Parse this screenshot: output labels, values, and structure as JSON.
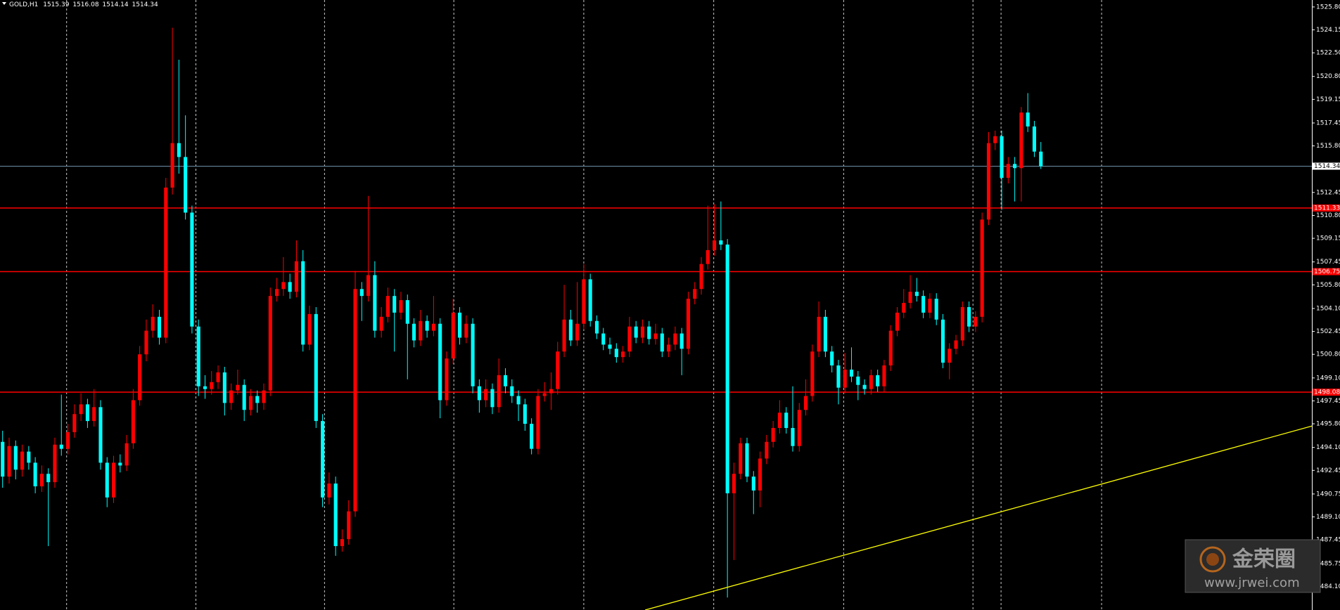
{
  "chart_data": {
    "type": "candlestick",
    "title": "GOLD,H1",
    "up_color": "#ff0000",
    "down_color": "#00ffff",
    "grid_color": "#c8c8c8",
    "axis_color": "#ffffff",
    "price_line_color": "#6f8fa8",
    "xlim": [
      -0.4,
      200.5
    ],
    "ylim": [
      1482.4,
      1526.3
    ],
    "xticks": [
      9.8,
      29.6,
      49.3,
      69.1,
      89.0,
      108.9,
      128.8,
      148.6,
      152.9,
      168.3
    ],
    "yticks": [
      {
        "value": 1525.8,
        "label": "1525.80"
      },
      {
        "value": 1524.15,
        "label": "1524.15"
      },
      {
        "value": 1522.5,
        "label": "1522.50"
      },
      {
        "value": 1520.8,
        "label": "1520.80"
      },
      {
        "value": 1519.15,
        "label": "1519.15"
      },
      {
        "value": 1517.45,
        "label": "1517.45"
      },
      {
        "value": 1515.8,
        "label": "1515.80"
      },
      {
        "value": 1512.45,
        "label": "1512.45"
      },
      {
        "value": 1510.8,
        "label": "1510.80"
      },
      {
        "value": 1509.15,
        "label": "1509.15"
      },
      {
        "value": 1507.45,
        "label": "1507.45"
      },
      {
        "value": 1505.8,
        "label": "1505.80"
      },
      {
        "value": 1504.1,
        "label": "1504.10"
      },
      {
        "value": 1502.45,
        "label": "1502.45"
      },
      {
        "value": 1500.8,
        "label": "1500.80"
      },
      {
        "value": 1499.1,
        "label": "1499.10"
      },
      {
        "value": 1497.45,
        "label": "1497.45"
      },
      {
        "value": 1495.8,
        "label": "1495.80"
      },
      {
        "value": 1494.1,
        "label": "1494.10"
      },
      {
        "value": 1492.45,
        "label": "1492.45"
      },
      {
        "value": 1490.75,
        "label": "1490.75"
      },
      {
        "value": 1489.1,
        "label": "1489.10"
      },
      {
        "value": 1487.45,
        "label": "1487.45"
      },
      {
        "value": 1485.75,
        "label": "1485.75"
      },
      {
        "value": 1484.1,
        "label": "1484.10"
      }
    ],
    "hlines": [
      1511.33,
      1506.75,
      1498.08
    ],
    "hline_color": "#ff0000",
    "trendline": {
      "x": [
        98.4,
        200.5
      ],
      "y": [
        1482.4,
        1495.64
      ],
      "color": "#ffff00"
    },
    "candles": [
      [
        1494.5,
        1495.3,
        1491.2,
        1492.0
      ],
      [
        1492.0,
        1494.8,
        1491.5,
        1494.2
      ],
      [
        1494.2,
        1494.6,
        1491.8,
        1492.5
      ],
      [
        1492.5,
        1494.3,
        1492.0,
        1493.8
      ],
      [
        1493.8,
        1494.2,
        1492.5,
        1493.0
      ],
      [
        1493.0,
        1493.4,
        1490.8,
        1491.3
      ],
      [
        1491.3,
        1492.8,
        1490.9,
        1492.2
      ],
      [
        1492.2,
        1492.6,
        1487.0,
        1491.6
      ],
      [
        1491.6,
        1494.8,
        1491.2,
        1494.3
      ],
      [
        1494.3,
        1497.9,
        1493.5,
        1494.0
      ],
      [
        1494.0,
        1495.8,
        1493.6,
        1495.2
      ],
      [
        1495.2,
        1497.2,
        1494.8,
        1496.5
      ],
      [
        1496.5,
        1498.0,
        1496.0,
        1497.2
      ],
      [
        1497.2,
        1497.6,
        1495.5,
        1496.0
      ],
      [
        1496.0,
        1498.3,
        1495.6,
        1497.0
      ],
      [
        1497.0,
        1497.5,
        1492.5,
        1493.0
      ],
      [
        1493.0,
        1493.4,
        1489.8,
        1490.5
      ],
      [
        1490.5,
        1493.5,
        1490.1,
        1493.0
      ],
      [
        1493.0,
        1493.6,
        1492.3,
        1492.8
      ],
      [
        1492.8,
        1495.0,
        1492.4,
        1494.4
      ],
      [
        1494.4,
        1498.3,
        1494.0,
        1497.5
      ],
      [
        1497.5,
        1501.4,
        1497.1,
        1500.8
      ],
      [
        1500.8,
        1503.3,
        1500.3,
        1502.5
      ],
      [
        1502.5,
        1504.4,
        1502.0,
        1503.5
      ],
      [
        1503.5,
        1504.0,
        1501.5,
        1502.0
      ],
      [
        1502.0,
        1513.5,
        1501.6,
        1512.8
      ],
      [
        1512.8,
        1524.3,
        1512.3,
        1516.0
      ],
      [
        1516.0,
        1522.0,
        1513.8,
        1515.0
      ],
      [
        1515.0,
        1518.0,
        1510.5,
        1511.0
      ],
      [
        1511.0,
        1511.5,
        1502.3,
        1502.8
      ],
      [
        1502.8,
        1503.3,
        1497.8,
        1498.5
      ],
      [
        1498.5,
        1499.3,
        1497.6,
        1498.3
      ],
      [
        1498.3,
        1499.6,
        1497.9,
        1498.8
      ],
      [
        1498.8,
        1500.0,
        1498.3,
        1499.5
      ],
      [
        1499.5,
        1499.9,
        1496.4,
        1497.3
      ],
      [
        1497.3,
        1498.7,
        1496.8,
        1498.2
      ],
      [
        1498.2,
        1499.7,
        1497.9,
        1498.6
      ],
      [
        1498.6,
        1499.0,
        1496.0,
        1496.8
      ],
      [
        1496.8,
        1498.3,
        1496.4,
        1497.8
      ],
      [
        1497.8,
        1498.2,
        1496.6,
        1497.3
      ],
      [
        1497.3,
        1498.7,
        1496.8,
        1498.2
      ],
      [
        1498.2,
        1505.6,
        1497.8,
        1505.0
      ],
      [
        1505.0,
        1506.3,
        1504.6,
        1505.5
      ],
      [
        1505.5,
        1507.8,
        1505.0,
        1506.0
      ],
      [
        1506.0,
        1506.6,
        1504.8,
        1505.3
      ],
      [
        1505.3,
        1509.0,
        1504.9,
        1507.5
      ],
      [
        1507.5,
        1508.3,
        1501.0,
        1501.5
      ],
      [
        1501.5,
        1504.3,
        1501.1,
        1503.7
      ],
      [
        1503.7,
        1504.2,
        1495.5,
        1496.0
      ],
      [
        1496.0,
        1496.5,
        1489.8,
        1490.5
      ],
      [
        1490.5,
        1492.3,
        1490.0,
        1491.5
      ],
      [
        1491.5,
        1492.0,
        1486.3,
        1487.0
      ],
      [
        1487.0,
        1488.2,
        1486.6,
        1487.5
      ],
      [
        1487.5,
        1490.3,
        1487.1,
        1489.5
      ],
      [
        1489.5,
        1506.8,
        1489.1,
        1505.5
      ],
      [
        1505.5,
        1506.0,
        1503.2,
        1505.0
      ],
      [
        1505.0,
        1512.2,
        1504.6,
        1506.5
      ],
      [
        1506.5,
        1507.5,
        1502.0,
        1502.5
      ],
      [
        1502.5,
        1504.2,
        1502.0,
        1503.5
      ],
      [
        1503.5,
        1505.6,
        1503.1,
        1505.0
      ],
      [
        1505.0,
        1505.5,
        1501.0,
        1503.8
      ],
      [
        1503.8,
        1505.3,
        1503.3,
        1504.7
      ],
      [
        1504.7,
        1505.1,
        1499.0,
        1503.0
      ],
      [
        1503.0,
        1503.4,
        1501.3,
        1501.8
      ],
      [
        1501.8,
        1504.0,
        1501.4,
        1503.2
      ],
      [
        1503.2,
        1503.6,
        1502.0,
        1502.5
      ],
      [
        1502.5,
        1505.0,
        1502.1,
        1503.0
      ],
      [
        1503.0,
        1503.4,
        1496.2,
        1497.5
      ],
      [
        1497.5,
        1501.0,
        1497.1,
        1500.5
      ],
      [
        1500.5,
        1504.8,
        1500.1,
        1503.8
      ],
      [
        1503.8,
        1504.2,
        1501.5,
        1502.0
      ],
      [
        1502.0,
        1503.6,
        1501.6,
        1503.0
      ],
      [
        1503.0,
        1503.4,
        1498.0,
        1498.5
      ],
      [
        1498.5,
        1499.0,
        1496.6,
        1497.5
      ],
      [
        1497.5,
        1499.0,
        1497.0,
        1498.3
      ],
      [
        1498.3,
        1498.7,
        1496.5,
        1497.0
      ],
      [
        1497.0,
        1500.5,
        1496.6,
        1499.3
      ],
      [
        1499.3,
        1499.8,
        1498.0,
        1498.5
      ],
      [
        1498.5,
        1499.0,
        1497.3,
        1497.8
      ],
      [
        1497.8,
        1498.2,
        1496.0,
        1497.2
      ],
      [
        1497.2,
        1497.6,
        1495.3,
        1495.8
      ],
      [
        1495.8,
        1496.2,
        1493.6,
        1494.0
      ],
      [
        1494.0,
        1498.3,
        1493.6,
        1497.8
      ],
      [
        1497.8,
        1498.8,
        1497.4,
        1498.0
      ],
      [
        1498.0,
        1499.5,
        1496.8,
        1498.3
      ],
      [
        1498.3,
        1501.7,
        1497.9,
        1501.0
      ],
      [
        1501.0,
        1505.8,
        1500.6,
        1503.3
      ],
      [
        1503.3,
        1504.0,
        1501.4,
        1501.8
      ],
      [
        1501.8,
        1506.0,
        1501.4,
        1503.0
      ],
      [
        1503.0,
        1507.3,
        1502.6,
        1506.2
      ],
      [
        1506.2,
        1506.6,
        1502.8,
        1503.2
      ],
      [
        1503.2,
        1503.6,
        1501.9,
        1502.3
      ],
      [
        1502.3,
        1502.7,
        1501.1,
        1501.5
      ],
      [
        1501.5,
        1502.0,
        1500.8,
        1501.2
      ],
      [
        1501.2,
        1501.6,
        1500.2,
        1500.6
      ],
      [
        1500.6,
        1501.4,
        1500.2,
        1501.0
      ],
      [
        1501.0,
        1503.5,
        1500.6,
        1502.8
      ],
      [
        1502.8,
        1503.2,
        1501.6,
        1502.0
      ],
      [
        1502.0,
        1503.3,
        1501.6,
        1502.8
      ],
      [
        1502.8,
        1503.2,
        1501.5,
        1501.9
      ],
      [
        1501.9,
        1503.0,
        1501.5,
        1502.3
      ],
      [
        1502.3,
        1502.7,
        1500.6,
        1501.0
      ],
      [
        1501.0,
        1502.0,
        1500.6,
        1501.5
      ],
      [
        1501.5,
        1502.8,
        1501.1,
        1502.3
      ],
      [
        1502.3,
        1502.7,
        1499.3,
        1501.2
      ],
      [
        1501.2,
        1505.3,
        1500.8,
        1504.8
      ],
      [
        1504.8,
        1506.0,
        1504.4,
        1505.5
      ],
      [
        1505.5,
        1507.8,
        1505.1,
        1507.3
      ],
      [
        1507.3,
        1511.5,
        1506.9,
        1508.3
      ],
      [
        1508.3,
        1511.6,
        1507.9,
        1509.0
      ],
      [
        1509.0,
        1511.8,
        1508.3,
        1508.7
      ],
      [
        1508.7,
        1509.1,
        1483.3,
        1490.8
      ],
      [
        1490.8,
        1493.0,
        1486.0,
        1492.2
      ],
      [
        1492.2,
        1494.8,
        1491.8,
        1494.4
      ],
      [
        1494.4,
        1494.8,
        1491.6,
        1492.0
      ],
      [
        1492.0,
        1492.4,
        1489.3,
        1491.0
      ],
      [
        1491.0,
        1493.8,
        1489.8,
        1493.3
      ],
      [
        1493.3,
        1495.0,
        1492.9,
        1494.5
      ],
      [
        1494.5,
        1496.0,
        1494.1,
        1495.5
      ],
      [
        1495.5,
        1497.5,
        1495.1,
        1496.6
      ],
      [
        1496.6,
        1497.0,
        1495.1,
        1495.5
      ],
      [
        1495.5,
        1498.5,
        1493.8,
        1494.2
      ],
      [
        1494.2,
        1497.3,
        1493.8,
        1496.8
      ],
      [
        1496.8,
        1499.0,
        1496.4,
        1497.8
      ],
      [
        1497.8,
        1501.5,
        1497.4,
        1501.0
      ],
      [
        1501.0,
        1504.6,
        1500.6,
        1503.5
      ],
      [
        1503.5,
        1504.0,
        1500.6,
        1501.0
      ],
      [
        1501.0,
        1501.4,
        1499.5,
        1500.0
      ],
      [
        1500.0,
        1500.4,
        1497.2,
        1498.4
      ],
      [
        1498.4,
        1500.9,
        1498.0,
        1499.7
      ],
      [
        1499.7,
        1501.3,
        1498.8,
        1499.2
      ],
      [
        1499.2,
        1499.6,
        1497.5,
        1498.6
      ],
      [
        1498.6,
        1499.0,
        1497.9,
        1498.3
      ],
      [
        1498.3,
        1499.7,
        1497.9,
        1499.3
      ],
      [
        1499.3,
        1499.7,
        1498.1,
        1498.5
      ],
      [
        1498.5,
        1500.4,
        1498.1,
        1500.0
      ],
      [
        1500.0,
        1502.9,
        1499.6,
        1502.5
      ],
      [
        1502.5,
        1504.2,
        1502.1,
        1503.8
      ],
      [
        1503.8,
        1505.5,
        1503.4,
        1504.5
      ],
      [
        1504.5,
        1506.5,
        1504.1,
        1505.3
      ],
      [
        1505.3,
        1506.3,
        1504.6,
        1505.0
      ],
      [
        1505.0,
        1505.4,
        1503.4,
        1503.8
      ],
      [
        1503.8,
        1505.2,
        1503.4,
        1504.8
      ],
      [
        1504.8,
        1505.2,
        1502.9,
        1503.3
      ],
      [
        1503.3,
        1503.7,
        1499.8,
        1500.2
      ],
      [
        1500.2,
        1501.6,
        1499.0,
        1501.2
      ],
      [
        1501.2,
        1502.2,
        1500.8,
        1501.8
      ],
      [
        1501.8,
        1504.6,
        1501.4,
        1504.2
      ],
      [
        1504.2,
        1504.6,
        1502.4,
        1502.8
      ],
      [
        1502.8,
        1503.9,
        1502.4,
        1503.5
      ],
      [
        1503.5,
        1511.0,
        1503.1,
        1510.5
      ],
      [
        1510.5,
        1516.8,
        1510.1,
        1516.0
      ],
      [
        1516.0,
        1516.9,
        1515.5,
        1516.5
      ],
      [
        1516.5,
        1516.9,
        1511.2,
        1513.5
      ],
      [
        1513.5,
        1515.0,
        1513.1,
        1514.5
      ],
      [
        1514.5,
        1515.0,
        1511.8,
        1514.2
      ],
      [
        1514.2,
        1518.6,
        1511.8,
        1518.2
      ],
      [
        1518.2,
        1519.6,
        1516.8,
        1517.2
      ],
      [
        1517.2,
        1517.6,
        1515.0,
        1515.39
      ],
      [
        1515.39,
        1516.08,
        1514.14,
        1514.34
      ]
    ],
    "watermark": {
      "name": "金荣圈",
      "url": "www.jrwei.com"
    }
  }
}
